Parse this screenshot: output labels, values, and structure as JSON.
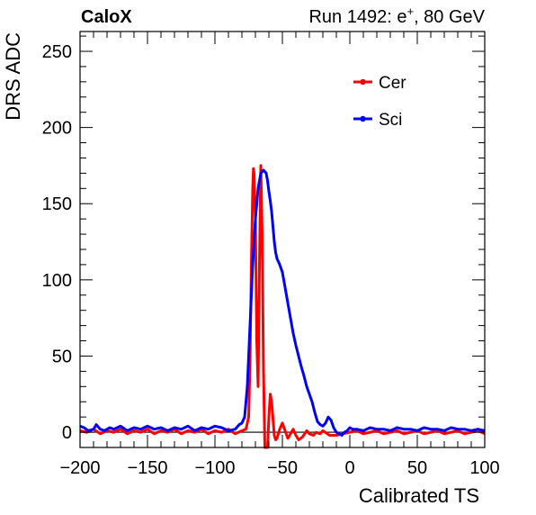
{
  "header": {
    "experiment": "CaloX",
    "run_text": "Run 1492: e",
    "run_sup": "+",
    "run_energy": ", 80 GeV"
  },
  "chart_data": {
    "type": "line",
    "xlabel": "Calibrated TS",
    "ylabel": "DRS ADC",
    "xlim": [
      -200,
      100
    ],
    "ylim": [
      -10,
      263
    ],
    "xticks": [
      -200,
      -150,
      -100,
      -50,
      0,
      50,
      100
    ],
    "xtick_labels": [
      "−200",
      "−150",
      "−100",
      "−50",
      "0",
      "50",
      "100"
    ],
    "yticks": [
      0,
      50,
      100,
      150,
      200,
      250
    ],
    "ytick_labels": [
      "0",
      "50",
      "100",
      "150",
      "200",
      "250"
    ],
    "grid": false,
    "legend_position": "top-right",
    "baseline": 0,
    "series": [
      {
        "name": "Cer",
        "color": "#ff0000",
        "x": [
          -200,
          -195,
          -190,
          -185,
          -180,
          -175,
          -170,
          -165,
          -160,
          -155,
          -150,
          -145,
          -140,
          -135,
          -130,
          -125,
          -120,
          -115,
          -110,
          -105,
          -100,
          -95,
          -90,
          -85,
          -80,
          -77,
          -75,
          -74,
          -73,
          -72,
          -71.5,
          -71,
          -70,
          -69,
          -68,
          -67,
          -66,
          -65,
          -64,
          -63,
          -62,
          -61,
          -60,
          -59,
          -58,
          -56,
          -55,
          -54,
          -52,
          -50,
          -48,
          -46,
          -44,
          -42,
          -40,
          -38,
          -35,
          -32,
          -30,
          -27,
          -25,
          -22,
          -20,
          -15,
          -10,
          -5,
          0,
          5,
          10,
          15,
          20,
          25,
          30,
          35,
          40,
          45,
          50,
          55,
          60,
          65,
          70,
          75,
          80,
          85,
          90,
          95,
          100
        ],
        "y": [
          1,
          0,
          2,
          -1,
          1,
          0,
          2,
          -1,
          1,
          0,
          2,
          -1,
          1,
          0,
          2,
          -1,
          1,
          0,
          2,
          -1,
          1,
          0,
          2,
          -1,
          1,
          2,
          10,
          45,
          110,
          160,
          173,
          170,
          140,
          60,
          30,
          110,
          175,
          130,
          40,
          -10,
          -10,
          -10,
          10,
          25,
          20,
          -2,
          -5,
          -4,
          2,
          6,
          1,
          -4,
          -1,
          2,
          -2,
          -5,
          -3,
          1,
          -1,
          -2,
          0,
          -1,
          1,
          -2,
          -2,
          -1,
          0,
          1,
          -1,
          0,
          1,
          -1,
          0,
          1,
          -1,
          0,
          1,
          -1,
          0,
          1,
          -1,
          0,
          1,
          -1,
          0,
          1,
          -1
        ]
      },
      {
        "name": "Sci",
        "color": "#0000ff",
        "x": [
          -200,
          -197,
          -194,
          -190,
          -188,
          -185,
          -182,
          -178,
          -175,
          -170,
          -165,
          -160,
          -155,
          -150,
          -145,
          -140,
          -135,
          -130,
          -125,
          -120,
          -115,
          -110,
          -105,
          -100,
          -95,
          -90,
          -85,
          -82,
          -80,
          -78,
          -76,
          -74,
          -72,
          -70,
          -68,
          -66,
          -64,
          -62,
          -61,
          -60,
          -59,
          -58,
          -57,
          -56,
          -55,
          -54,
          -53,
          -52,
          -50,
          -48,
          -46,
          -44,
          -42,
          -40,
          -38,
          -36,
          -34,
          -32,
          -30,
          -28,
          -26,
          -24,
          -22,
          -20,
          -18,
          -16,
          -14,
          -12,
          -10,
          -8,
          -6,
          -4,
          -2,
          0,
          2,
          5,
          10,
          15,
          20,
          25,
          30,
          35,
          40,
          45,
          50,
          55,
          60,
          65,
          70,
          75,
          80,
          85,
          90,
          95,
          100
        ],
        "y": [
          4,
          3,
          1,
          2,
          5,
          2,
          1,
          3,
          2,
          4,
          1,
          3,
          2,
          4,
          2,
          3,
          1,
          3,
          2,
          4,
          1,
          3,
          2,
          4,
          3,
          1,
          2,
          5,
          6,
          10,
          30,
          70,
          110,
          140,
          160,
          170,
          172,
          170,
          165,
          158,
          152,
          145,
          135,
          125,
          118,
          114,
          112,
          110,
          105,
          95,
          85,
          75,
          65,
          57,
          50,
          43,
          37,
          30,
          25,
          20,
          13,
          7,
          5,
          4,
          6,
          10,
          8,
          3,
          0,
          -1,
          -2,
          0,
          1,
          3,
          2,
          2,
          1,
          3,
          2,
          2,
          1,
          3,
          2,
          2,
          1,
          3,
          2,
          2,
          1,
          3,
          2,
          2,
          1,
          2,
          1
        ]
      }
    ]
  }
}
